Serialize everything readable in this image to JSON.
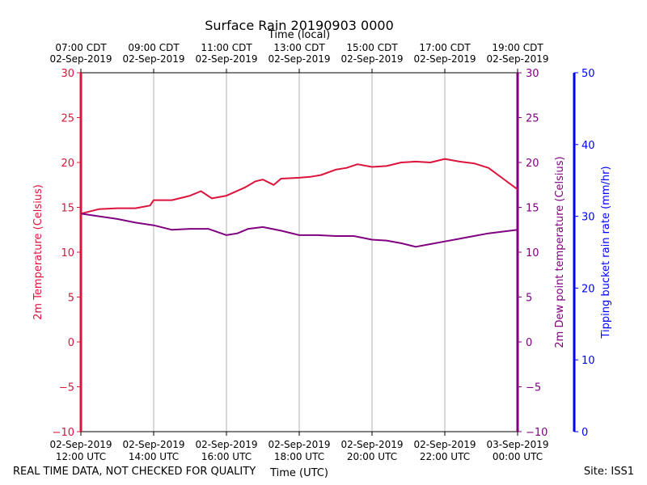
{
  "chart_data": {
    "type": "line",
    "title": "Surface Rain 20190903 0000",
    "top_axis_label": "Time (local)",
    "xlabel": "Time (UTC)",
    "ylabel_left": "2m Temperature (Celsius)",
    "ylabel_right": "2m Dew point temperature (Celsius)",
    "ylabel_rain": "Tipping bucket rain rate (mm/hr)",
    "x_range_hours_utc": [
      12,
      24
    ],
    "ylim_left": [
      -10,
      30
    ],
    "ylim_right": [
      -10,
      30
    ],
    "ylim_rain": [
      0,
      50
    ],
    "left_ticks": [
      "30",
      "25",
      "20",
      "15",
      "10",
      "5",
      "0",
      "−5",
      "−10"
    ],
    "right_ticks": [
      "30",
      "25",
      "20",
      "15",
      "10",
      "5",
      "0",
      "−5",
      "−10"
    ],
    "rain_ticks": [
      "50",
      "40",
      "30",
      "20",
      "10",
      "0"
    ],
    "bottom_ticks": [
      {
        "line1": "02-Sep-2019",
        "line2": "12:00 UTC"
      },
      {
        "line1": "02-Sep-2019",
        "line2": "14:00 UTC"
      },
      {
        "line1": "02-Sep-2019",
        "line2": "16:00 UTC"
      },
      {
        "line1": "02-Sep-2019",
        "line2": "18:00 UTC"
      },
      {
        "line1": "02-Sep-2019",
        "line2": "20:00 UTC"
      },
      {
        "line1": "02-Sep-2019",
        "line2": "22:00 UTC"
      },
      {
        "line1": "03-Sep-2019",
        "line2": "00:00 UTC"
      }
    ],
    "top_ticks": [
      {
        "line1": "07:00 CDT",
        "line2": "02-Sep-2019"
      },
      {
        "line1": "09:00 CDT",
        "line2": "02-Sep-2019"
      },
      {
        "line1": "11:00 CDT",
        "line2": "02-Sep-2019"
      },
      {
        "line1": "13:00 CDT",
        "line2": "02-Sep-2019"
      },
      {
        "line1": "15:00 CDT",
        "line2": "02-Sep-2019"
      },
      {
        "line1": "17:00 CDT",
        "line2": "02-Sep-2019"
      },
      {
        "line1": "19:00 CDT",
        "line2": "02-Sep-2019"
      }
    ],
    "series": [
      {
        "name": "2m Temperature",
        "color": "#dc143c",
        "x": [
          12.0,
          12.5,
          13.0,
          13.5,
          13.9,
          14.0,
          14.5,
          15.0,
          15.3,
          15.6,
          16.0,
          16.5,
          16.8,
          17.0,
          17.3,
          17.5,
          18.0,
          18.3,
          18.6,
          19.0,
          19.3,
          19.6,
          20.0,
          20.4,
          20.8,
          21.2,
          21.6,
          22.0,
          22.4,
          22.8,
          23.2,
          23.6,
          24.0
        ],
        "values": [
          14.3,
          14.8,
          14.9,
          14.9,
          15.2,
          15.8,
          15.8,
          16.3,
          16.8,
          16.0,
          16.3,
          17.2,
          17.9,
          18.1,
          17.5,
          18.2,
          18.3,
          18.4,
          18.6,
          19.2,
          19.4,
          19.8,
          19.5,
          19.6,
          20.0,
          20.1,
          20.0,
          20.4,
          20.1,
          19.9,
          19.4,
          18.2,
          17.0
        ]
      },
      {
        "name": "2m Dew point temperature",
        "color": "#800080",
        "x": [
          12.0,
          12.5,
          13.0,
          13.5,
          14.0,
          14.5,
          15.0,
          15.5,
          16.0,
          16.3,
          16.6,
          17.0,
          17.5,
          18.0,
          18.5,
          19.0,
          19.5,
          20.0,
          20.4,
          20.8,
          21.2,
          21.6,
          22.0,
          22.4,
          22.8,
          23.2,
          23.6,
          24.0
        ],
        "values": [
          14.3,
          14.0,
          13.7,
          13.3,
          13.0,
          12.5,
          12.6,
          12.6,
          11.9,
          12.1,
          12.6,
          12.8,
          12.4,
          11.9,
          11.9,
          11.8,
          11.8,
          11.4,
          11.3,
          11.0,
          10.6,
          10.9,
          11.2,
          11.5,
          11.8,
          12.1,
          12.3,
          12.5
        ]
      }
    ],
    "rain_series": {
      "name": "Tipping bucket rain rate",
      "color": "#0000ff",
      "values": []
    }
  },
  "footer": {
    "left_note": "REAL TIME DATA, NOT CHECKED FOR QUALITY",
    "site": "Site: ISS1"
  }
}
